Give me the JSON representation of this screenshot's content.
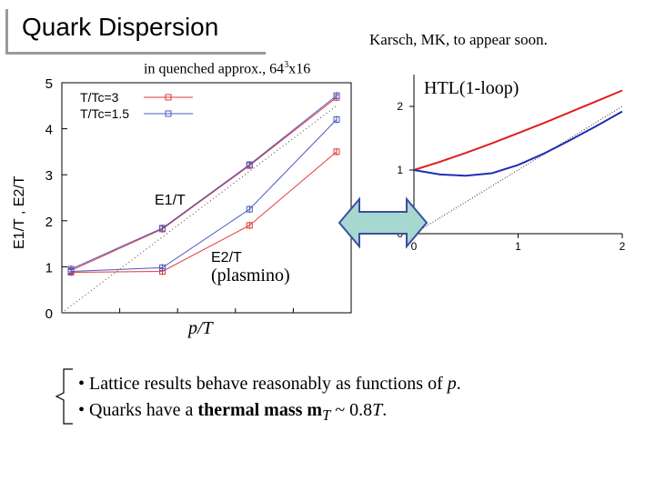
{
  "slide": {
    "title": "Quark Dispersion",
    "credit": "Karsch, MK, to appear soon.",
    "subtitle_prefix": "in quenched approx., 64",
    "subtitle_sup": "3",
    "subtitle_suffix": "x16",
    "plasmino_label": "(plasmino)",
    "xlabel": "p/T",
    "bullet1_a": "• Lattice results behave reasonably as functions of ",
    "bullet1_p": "p",
    "bullet1_b": ".",
    "bullet2_a": "• Quarks have a ",
    "bullet2_bold": "thermal mass",
    "bullet2_b": " m",
    "bullet2_sub": "T",
    "bullet2_c": " ~ 0.8",
    "bullet2_T": "T",
    "bullet2_d": "."
  },
  "chart_data": [
    {
      "type": "line",
      "ylabel": "E1/T , E2/T",
      "ylim": [
        0,
        5
      ],
      "yticks": [
        "0",
        "1",
        "2",
        "3",
        "4",
        "5"
      ],
      "legend": {
        "entries": [
          "T/Tc=3",
          "T/Tc=1.5"
        ],
        "colors": [
          "#e23a3a",
          "#4a5bc4"
        ],
        "placement": "top-left"
      },
      "series_label_e1": "E1/T",
      "series_label_e2": "E2/T",
      "x": [
        0,
        0.42,
        0.82,
        1.22
      ],
      "series": [
        {
          "name": "T/Tc=3",
          "branch": "E1/T",
          "color": "#e23a3a",
          "values": [
            0.92,
            1.82,
            3.2,
            4.68
          ]
        },
        {
          "name": "T/Tc=1.5",
          "branch": "E1/T",
          "color": "#4a5bc4",
          "values": [
            0.95,
            1.84,
            3.22,
            4.72
          ]
        },
        {
          "name": "T/Tc=3",
          "branch": "E2/T",
          "color": "#e23a3a",
          "values": [
            0.88,
            0.9,
            1.9,
            3.5
          ]
        },
        {
          "name": "T/Tc=1.5",
          "branch": "E2/T",
          "color": "#4a5bc4",
          "values": [
            0.9,
            0.98,
            2.25,
            4.2
          ]
        }
      ],
      "lightcone": true
    },
    {
      "type": "line",
      "title": "HTL(1-loop)",
      "xlim": [
        0,
        2
      ],
      "ylim": [
        0,
        2.5
      ],
      "xticks": [
        "0",
        "1",
        "2"
      ],
      "yticks": [
        "0",
        "1",
        "2"
      ],
      "series": [
        {
          "branch": "upper",
          "color": "#e01e1e",
          "x": [
            0,
            0.25,
            0.5,
            0.75,
            1.0,
            1.25,
            1.5,
            1.75,
            2.0
          ],
          "values": [
            1.0,
            1.13,
            1.27,
            1.42,
            1.58,
            1.74,
            1.91,
            2.08,
            2.25
          ]
        },
        {
          "branch": "plasmino",
          "color": "#1e2fb4",
          "x": [
            0,
            0.25,
            0.5,
            0.75,
            1.0,
            1.25,
            1.5,
            1.75,
            2.0
          ],
          "values": [
            1.0,
            0.93,
            0.91,
            0.95,
            1.08,
            1.26,
            1.47,
            1.69,
            1.92
          ]
        }
      ],
      "lightcone": true
    }
  ]
}
